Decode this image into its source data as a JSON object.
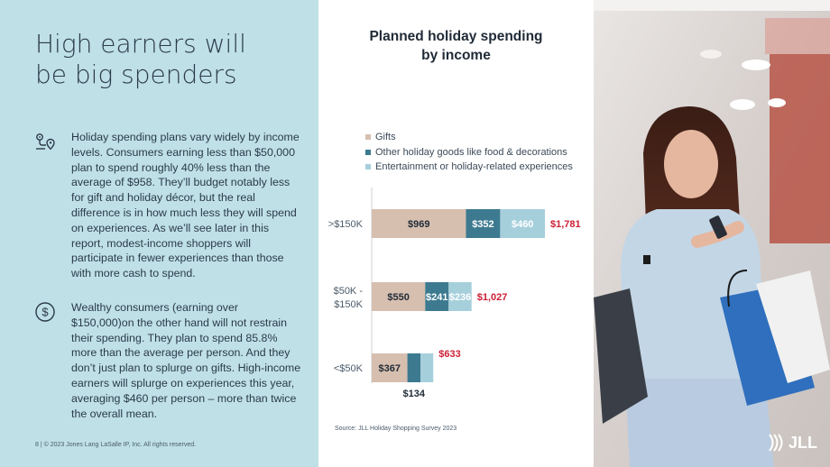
{
  "left_panel": {
    "title_line1": "High earners will",
    "title_line2": "be big spenders",
    "paragraph1": "Holiday spending plans vary widely by income levels. Consumers earning less than $50,000 plan to spend roughly 40% less than the average of $958. They’ll budget notably less for gift and holiday décor, but the real difference is in how much less they will spend on experiences. As we’ll see later in this report, modest-income shoppers will participate in fewer experiences than those with more cash to spend.",
    "paragraph2": "Wealthy consumers (earning over $150,000)on the other hand will not restrain their spending. They plan to spend 85.8% more than the average per person.  And they don’t just plan to splurge on gifts. High-income earners will splurge on experiences this year, averaging $460 per person – more than twice the overall mean.",
    "footer": "8 | © 2023 Jones Lang LaSalle IP, Inc. All rights reserved.",
    "icon1": "route-pin-icon",
    "icon2": "dollar-circle-icon"
  },
  "chart_data": {
    "type": "bar",
    "orientation": "horizontal",
    "stacked": true,
    "title": "Planned holiday spending by income",
    "title_line1": "Planned holiday spending",
    "title_line2": "by income",
    "categories": [
      ">$150K",
      "$50K - $150K",
      "<$50K"
    ],
    "series": [
      {
        "name": "Gifts",
        "color": "#d7bfb0",
        "values": [
          969,
          550,
          367
        ],
        "labels": [
          "$969",
          "$550",
          "$367"
        ]
      },
      {
        "name": "Other holiday goods like food & decorations",
        "color": "#3d7a8f",
        "values": [
          352,
          241,
          134
        ],
        "labels": [
          "$352",
          "$241",
          "$134"
        ]
      },
      {
        "name": "Entertainment or holiday-related experiences",
        "color": "#a6cfdc",
        "values": [
          460,
          236,
          132
        ],
        "labels": [
          "$460",
          "$236",
          ""
        ]
      }
    ],
    "totals": [
      "$1,781",
      "$1,027",
      "$633"
    ],
    "total_color": "#cc1f36",
    "legend_position": "top",
    "grid": false,
    "source": "Source: JLL Holiday Shopping Survey 2023"
  },
  "brand": {
    "logo_text": "JLL"
  }
}
